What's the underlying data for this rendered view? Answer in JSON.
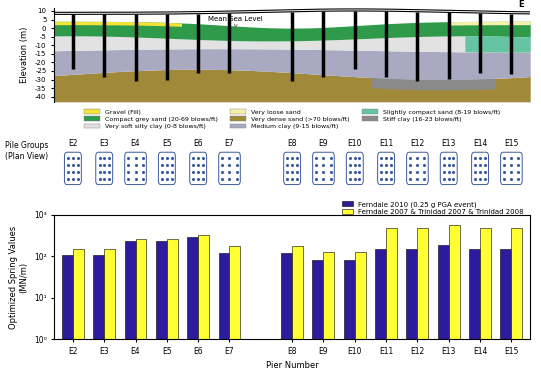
{
  "chart_data": [
    {
      "type": "profile",
      "ylabel": "Elevation (m)",
      "ylim": [
        -43,
        12
      ],
      "yticks": [
        10,
        5,
        0,
        -5,
        -10,
        -15,
        -20,
        -25,
        -30,
        -35,
        -40
      ],
      "tick_labels": "y",
      "annotations": [
        "Mean Sea Level",
        "E"
      ],
      "series": [
        {
          "name": "Gravel (Fill)",
          "color": "#f2e33a"
        },
        {
          "name": "Compact grey sand (20-69 blows/ft)",
          "color": "#2f9a4a"
        },
        {
          "name": "Very soft silty clay (0-8 blows/ft)",
          "color": "#e2e2e2"
        },
        {
          "name": "Very loose sand",
          "color": "#f6f0a8"
        },
        {
          "name": "Very dense sand (>70 blows/ft)",
          "color": "#a08a3a"
        },
        {
          "name": "Medium clay (9-15 blows/ft)",
          "color": "#a9a9c2"
        },
        {
          "name": "Slightly compact sand (8-19 blows/ft)",
          "color": "#66c4a4"
        },
        {
          "name": "Stiff clay (16-23 blows/ft)",
          "color": "#8a8a8a"
        }
      ]
    },
    {
      "type": "plan_view",
      "title": "Pile Groups\n(Plan View)",
      "categories": [
        "E2",
        "E3",
        "E4",
        "E5",
        "E6",
        "E7",
        null,
        "E8",
        "E9",
        "E10",
        "E11",
        "E12",
        "E13",
        "E14",
        "E15"
      ]
    },
    {
      "type": "bar",
      "xlabel": "Pier Number",
      "ylabel": "Optimized Spring Values\n(MN/m)",
      "log": "y",
      "ylim": [
        1,
        1000
      ],
      "yticks": [
        {
          "value": 1,
          "label": "10⁰"
        },
        {
          "value": 10,
          "label": "10¹"
        },
        {
          "value": 100,
          "label": "10²"
        },
        {
          "value": 1000,
          "label": "10³"
        }
      ],
      "legend": "upper right",
      "categories": [
        "E2",
        "E3",
        "E4",
        "E5",
        "E6",
        "E7",
        null,
        "E8",
        "E9",
        "E10",
        "E11",
        "E12",
        "E13",
        "E14",
        "E15"
      ],
      "series": [
        {
          "name": "Ferndale 2010 (0.25 g PGA event)",
          "color": "#2c1b9c",
          "values": [
            110,
            110,
            240,
            230,
            300,
            120,
            null,
            120,
            80,
            80,
            150,
            150,
            190,
            150,
            150
          ]
        },
        {
          "name": "Ferndale 2007 & Trinidad 2007 & Trinidad 2008",
          "color": "#ffff33",
          "values": [
            150,
            150,
            260,
            260,
            320,
            180,
            null,
            180,
            130,
            130,
            480,
            480,
            580,
            480,
            480
          ]
        }
      ]
    }
  ]
}
